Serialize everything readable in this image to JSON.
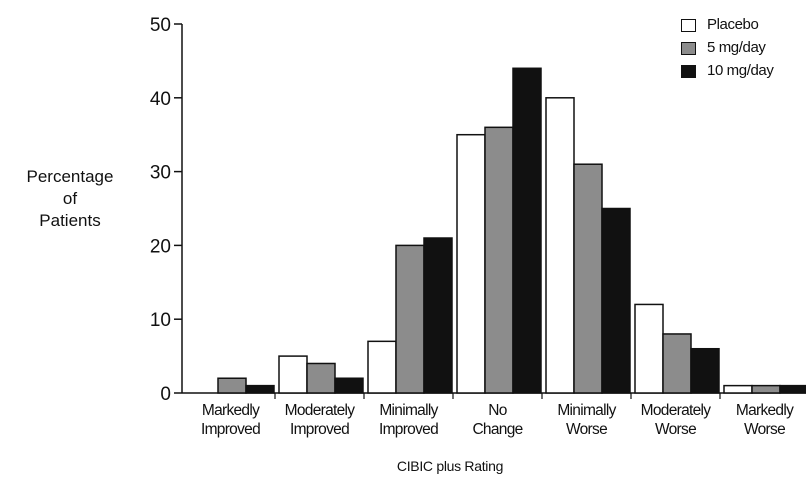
{
  "chart_data": {
    "type": "bar",
    "title": "",
    "xlabel": "CIBIC plus Rating",
    "ylabel": [
      "Percentage",
      "of",
      "Patients"
    ],
    "ylim": [
      0,
      50
    ],
    "yticks": [
      0,
      10,
      20,
      30,
      40,
      50
    ],
    "grid": false,
    "legend_position": "top-right",
    "categories": [
      [
        "Markedly",
        "Improved"
      ],
      [
        "Moderately",
        "Improved"
      ],
      [
        "Minimally",
        "Improved"
      ],
      [
        "No",
        "Change"
      ],
      [
        "Minimally",
        "Worse"
      ],
      [
        "Moderately",
        "Worse"
      ],
      [
        "Markedly",
        "Worse"
      ]
    ],
    "series": [
      {
        "name": "Placebo",
        "color": "#ffffff",
        "values": [
          0,
          5,
          7,
          35,
          40,
          12,
          1
        ]
      },
      {
        "name": "5 mg/day",
        "color": "#8c8c8c",
        "values": [
          2,
          4,
          20,
          36,
          31,
          8,
          1
        ]
      },
      {
        "name": "10 mg/day",
        "color": "#111111",
        "values": [
          1,
          2,
          21,
          44,
          25,
          6,
          1
        ]
      }
    ]
  }
}
